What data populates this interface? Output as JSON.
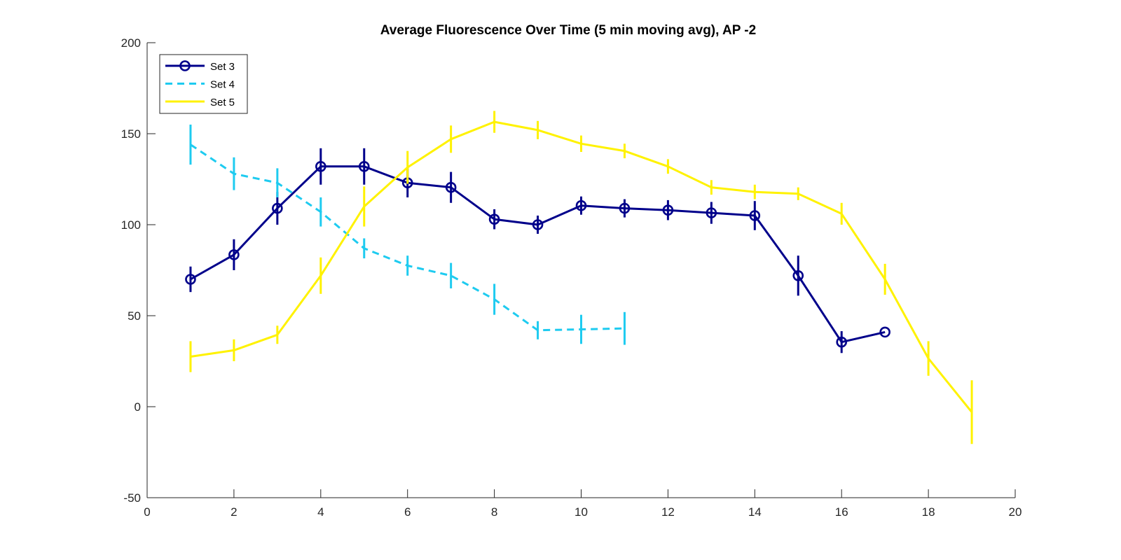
{
  "chart_data": {
    "type": "line",
    "title": "Average Fluorescence Over Time (5 min moving avg), AP -2",
    "xlabel": "",
    "ylabel": "",
    "xlim": [
      0,
      20
    ],
    "ylim": [
      -50,
      200
    ],
    "x_ticks": [
      "0",
      "2",
      "4",
      "6",
      "8",
      "10",
      "12",
      "14",
      "16",
      "18",
      "20"
    ],
    "y_ticks": [
      "-50",
      "0",
      "50",
      "100",
      "150",
      "200"
    ],
    "grid": false,
    "legend_position": "top-left",
    "series": [
      {
        "name": "Set 3",
        "color": "#00008B",
        "line_style": "solid",
        "marker": "circle",
        "x": [
          1,
          2,
          3,
          4,
          5,
          6,
          7,
          8,
          9,
          10,
          11,
          12,
          13,
          14,
          15,
          16,
          17
        ],
        "y": [
          70,
          83.5,
          109,
          132,
          132,
          123,
          120.5,
          103,
          100,
          110.5,
          109,
          108,
          106.5,
          105,
          72,
          35.5,
          41
        ],
        "err": [
          7,
          8.5,
          9,
          10,
          10,
          8,
          8.5,
          5.5,
          5,
          5,
          5,
          5.5,
          6,
          8,
          11,
          6,
          0
        ]
      },
      {
        "name": "Set 4",
        "color": "#1ECBF0",
        "line_style": "dashed",
        "marker": "none",
        "x": [
          1,
          2,
          3,
          4,
          5,
          6,
          7,
          8,
          9,
          10,
          11
        ],
        "y": [
          144,
          128,
          123,
          107,
          87,
          77.5,
          72,
          59,
          42,
          42.5,
          43
        ],
        "err": [
          11,
          9,
          8,
          8,
          5.5,
          5.5,
          7,
          8.5,
          5,
          8,
          9
        ]
      },
      {
        "name": "Set 5",
        "color": "#FFF200",
        "line_style": "solid",
        "marker": "none",
        "x": [
          1,
          2,
          3,
          4,
          5,
          6,
          7,
          8,
          9,
          10,
          11,
          12,
          13,
          14,
          15,
          16,
          17,
          18,
          19
        ],
        "y": [
          27.5,
          31,
          39.5,
          72,
          110,
          131.5,
          147,
          156.5,
          152,
          144.5,
          140.5,
          132,
          120.5,
          118,
          117,
          106,
          70,
          26.5,
          -3
        ],
        "err": [
          8.5,
          6,
          5,
          10,
          11,
          9,
          7.5,
          6,
          5,
          4.5,
          4,
          4,
          4,
          4,
          3.5,
          6,
          8.5,
          9.5,
          17.5
        ]
      }
    ]
  }
}
